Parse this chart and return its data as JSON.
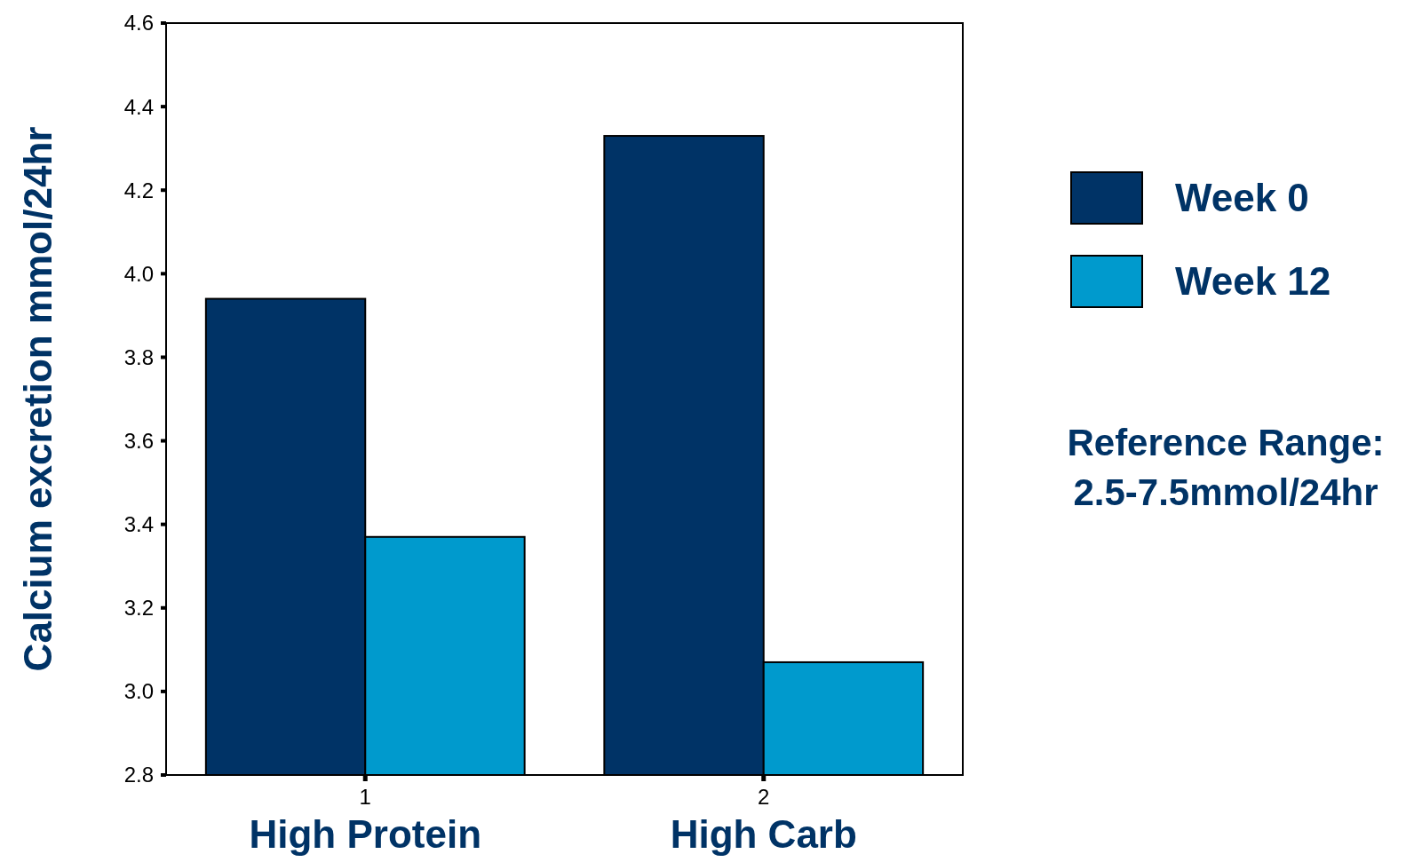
{
  "chart_data": {
    "type": "bar",
    "ylabel": "Calcium excretion mmol/24hr",
    "categories": [
      "1",
      "2"
    ],
    "series": [
      {
        "name": "Week 0",
        "color": "#003366",
        "values": [
          3.94,
          4.33
        ]
      },
      {
        "name": "Week 12",
        "color": "#009acd",
        "values": [
          3.37,
          3.07
        ]
      }
    ],
    "ylim": [
      2.8,
      4.6
    ],
    "yticks": [
      {
        "value": 2.8,
        "label": "2.8"
      },
      {
        "value": 3.0,
        "label": "3.0"
      },
      {
        "value": 3.2,
        "label": "3.2"
      },
      {
        "value": 3.4,
        "label": "3.4"
      },
      {
        "value": 3.6,
        "label": "3.6"
      },
      {
        "value": 3.8,
        "label": "3.8"
      },
      {
        "value": 4.0,
        "label": "4.0"
      },
      {
        "value": 4.2,
        "label": "4.2"
      },
      {
        "value": 4.4,
        "label": "4.4"
      },
      {
        "value": 4.6,
        "label": "4.6"
      }
    ],
    "annotations": [
      "High Protein",
      "High Carb",
      "Reference Range:\n2.5-7.5mmol/24hr"
    ],
    "legend": "right",
    "grid": false
  }
}
